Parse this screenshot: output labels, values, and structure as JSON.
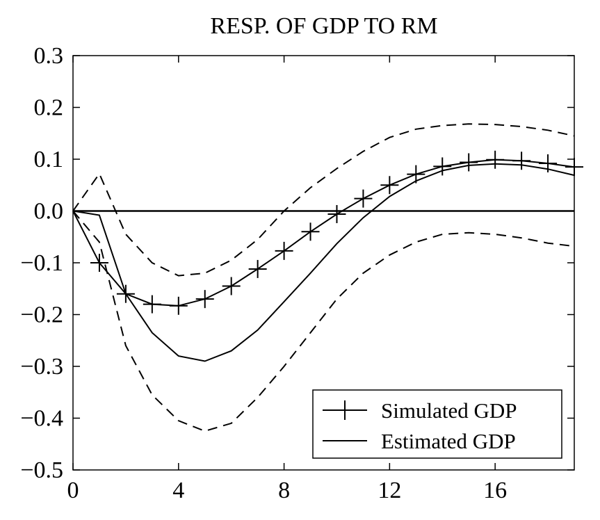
{
  "chart_data": {
    "type": "line",
    "title": "RESP. OF GDP TO RM",
    "xlabel": "",
    "ylabel": "",
    "xlim": [
      0,
      19
    ],
    "ylim": [
      -0.5,
      0.3
    ],
    "x_ticks": [
      0,
      4,
      8,
      12,
      16
    ],
    "x_tick_labels": [
      "0",
      "4",
      "8",
      "12",
      "16"
    ],
    "y_ticks": [
      0.3,
      0.2,
      0.1,
      0.0,
      -0.1,
      -0.2,
      -0.3,
      -0.4,
      -0.5
    ],
    "y_tick_labels": [
      "0.3",
      "0.2",
      "0.1",
      "0.0",
      "−0.1",
      "−0.2",
      "−0.3",
      "−0.4",
      "−0.5"
    ],
    "grid": false,
    "zero_line": true,
    "legend_position": "bottom-right",
    "legend": [
      "Simulated GDP",
      "Estimated GDP"
    ],
    "x": [
      0,
      1,
      2,
      3,
      4,
      5,
      6,
      7,
      8,
      9,
      10,
      11,
      12,
      13,
      14,
      15,
      16,
      17,
      18,
      19
    ],
    "series": [
      {
        "name": "Simulated GDP",
        "style": "line-plus",
        "values": [
          0.0,
          -0.1,
          -0.16,
          -0.18,
          -0.183,
          -0.17,
          -0.145,
          -0.112,
          -0.077,
          -0.04,
          -0.006,
          0.024,
          0.05,
          0.071,
          0.086,
          0.094,
          0.099,
          0.097,
          0.092,
          0.085
        ]
      },
      {
        "name": "Estimated GDP",
        "style": "solid",
        "values": [
          0.0,
          -0.008,
          -0.16,
          -0.235,
          -0.28,
          -0.29,
          -0.27,
          -0.23,
          -0.175,
          -0.12,
          -0.063,
          -0.013,
          0.028,
          0.058,
          0.078,
          0.088,
          0.091,
          0.089,
          0.081,
          0.069
        ]
      },
      {
        "style": "dashed-upper",
        "values": [
          0.0,
          0.072,
          -0.045,
          -0.1,
          -0.125,
          -0.12,
          -0.095,
          -0.055,
          0.0,
          0.045,
          0.082,
          0.115,
          0.142,
          0.158,
          0.165,
          0.168,
          0.167,
          0.163,
          0.156,
          0.145
        ]
      },
      {
        "style": "dashed-lower",
        "values": [
          0.0,
          -0.06,
          -0.26,
          -0.355,
          -0.405,
          -0.425,
          -0.41,
          -0.36,
          -0.3,
          -0.235,
          -0.17,
          -0.12,
          -0.085,
          -0.06,
          -0.045,
          -0.042,
          -0.045,
          -0.052,
          -0.062,
          -0.068
        ]
      }
    ]
  }
}
